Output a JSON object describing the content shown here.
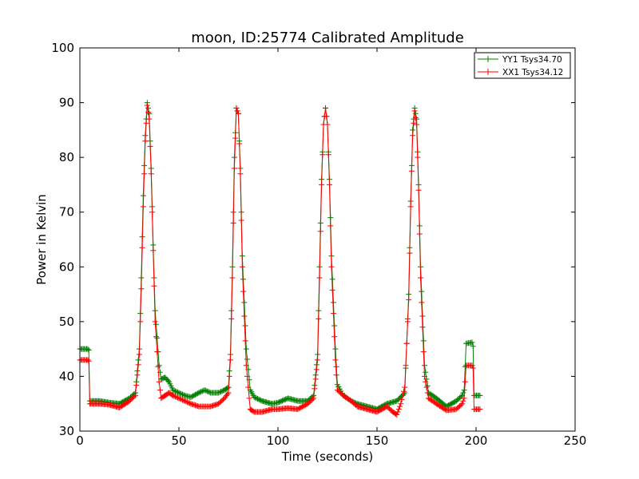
{
  "chart_data": {
    "type": "line",
    "title": "moon, ID:25774 Calibrated Amplitude",
    "xlabel": "Time (seconds)",
    "ylabel": "Power in Kelvin",
    "xlim": [
      0,
      250
    ],
    "ylim": [
      30,
      100
    ],
    "xticks": [
      0,
      50,
      100,
      150,
      200,
      250
    ],
    "yticks": [
      30,
      40,
      50,
      60,
      70,
      80,
      90,
      100
    ],
    "grid": false,
    "legend_position": "top-right",
    "marker": "plus",
    "series": [
      {
        "name": "YY1 Tsys34.70",
        "color": "#008000",
        "points": [
          [
            0,
            45
          ],
          [
            4,
            45
          ],
          [
            4.5,
            44.8
          ],
          [
            5,
            35.5
          ],
          [
            10,
            35.5
          ],
          [
            15,
            35.2
          ],
          [
            20,
            35
          ],
          [
            25,
            36
          ],
          [
            28,
            37
          ],
          [
            30,
            45
          ],
          [
            31,
            58
          ],
          [
            32,
            73
          ],
          [
            33,
            84
          ],
          [
            34,
            90
          ],
          [
            35,
            88
          ],
          [
            36,
            78
          ],
          [
            37,
            64
          ],
          [
            38,
            52
          ],
          [
            40,
            42
          ],
          [
            41,
            39.5
          ],
          [
            43,
            39.8
          ],
          [
            45,
            39
          ],
          [
            47,
            37.5
          ],
          [
            50,
            37
          ],
          [
            53,
            36.5
          ],
          [
            56,
            36.2
          ],
          [
            60,
            37
          ],
          [
            63,
            37.5
          ],
          [
            66,
            37
          ],
          [
            70,
            37
          ],
          [
            73,
            37.5
          ],
          [
            75,
            38
          ],
          [
            76,
            44
          ],
          [
            77,
            60
          ],
          [
            78,
            80
          ],
          [
            79,
            89
          ],
          [
            80,
            88
          ],
          [
            81,
            78
          ],
          [
            82,
            62
          ],
          [
            84,
            45
          ],
          [
            86,
            37.5
          ],
          [
            88,
            36.2
          ],
          [
            92,
            35.5
          ],
          [
            97,
            35
          ],
          [
            100,
            35.2
          ],
          [
            105,
            36
          ],
          [
            110,
            35.5
          ],
          [
            115,
            35.5
          ],
          [
            118,
            36.5
          ],
          [
            120,
            44
          ],
          [
            121,
            60
          ],
          [
            122,
            76
          ],
          [
            123,
            86
          ],
          [
            124,
            89
          ],
          [
            125,
            86
          ],
          [
            126,
            76
          ],
          [
            127,
            62
          ],
          [
            129,
            45
          ],
          [
            130,
            38.5
          ],
          [
            133,
            36.5
          ],
          [
            137,
            35.5
          ],
          [
            140,
            35
          ],
          [
            145,
            34.5
          ],
          [
            150,
            34
          ],
          [
            155,
            35
          ],
          [
            160,
            35.5
          ],
          [
            164,
            37
          ],
          [
            166,
            55
          ],
          [
            167,
            72
          ],
          [
            168,
            85
          ],
          [
            169,
            89
          ],
          [
            170,
            87
          ],
          [
            171,
            75
          ],
          [
            172,
            60
          ],
          [
            174,
            42
          ],
          [
            176,
            37
          ],
          [
            180,
            36
          ],
          [
            185,
            34.5
          ],
          [
            190,
            35.5
          ],
          [
            193,
            36.5
          ],
          [
            194,
            37.5
          ],
          [
            195,
            46
          ],
          [
            198,
            46.2
          ],
          [
            198.5,
            45.5
          ],
          [
            199,
            36.5
          ],
          [
            202,
            36.5
          ]
        ]
      },
      {
        "name": "XX1 Tsys34.12",
        "color": "#ff0000",
        "points": [
          [
            0,
            43
          ],
          [
            4,
            43
          ],
          [
            4.5,
            42.8
          ],
          [
            5,
            35
          ],
          [
            10,
            35
          ],
          [
            15,
            34.8
          ],
          [
            20,
            34.3
          ],
          [
            25,
            35.5
          ],
          [
            28,
            36.5
          ],
          [
            30,
            44
          ],
          [
            31,
            56
          ],
          [
            32,
            71
          ],
          [
            33,
            83
          ],
          [
            34,
            89.5
          ],
          [
            35,
            87
          ],
          [
            36,
            77
          ],
          [
            37,
            63
          ],
          [
            38,
            50
          ],
          [
            40,
            39
          ],
          [
            41,
            36
          ],
          [
            43,
            36.5
          ],
          [
            45,
            37
          ],
          [
            47,
            36.5
          ],
          [
            50,
            36
          ],
          [
            53,
            35.5
          ],
          [
            56,
            35
          ],
          [
            60,
            34.5
          ],
          [
            63,
            34.5
          ],
          [
            66,
            34.5
          ],
          [
            70,
            35
          ],
          [
            73,
            36
          ],
          [
            75,
            37
          ],
          [
            76,
            43
          ],
          [
            77,
            58
          ],
          [
            78,
            78
          ],
          [
            79,
            89
          ],
          [
            80,
            88
          ],
          [
            81,
            77
          ],
          [
            82,
            60
          ],
          [
            84,
            42
          ],
          [
            86,
            34
          ],
          [
            88,
            33.5
          ],
          [
            92,
            33.5
          ],
          [
            97,
            34
          ],
          [
            100,
            34
          ],
          [
            105,
            34.2
          ],
          [
            110,
            34
          ],
          [
            115,
            35
          ],
          [
            118,
            36
          ],
          [
            120,
            43
          ],
          [
            121,
            58
          ],
          [
            122,
            75
          ],
          [
            123,
            86
          ],
          [
            124,
            89
          ],
          [
            125,
            86
          ],
          [
            126,
            75
          ],
          [
            127,
            60
          ],
          [
            129,
            43
          ],
          [
            130,
            37.5
          ],
          [
            133,
            36.5
          ],
          [
            137,
            35.5
          ],
          [
            140,
            34.5
          ],
          [
            145,
            34
          ],
          [
            150,
            33.5
          ],
          [
            155,
            34.5
          ],
          [
            158,
            33.5
          ],
          [
            160,
            33
          ],
          [
            162,
            35
          ],
          [
            164,
            38
          ],
          [
            166,
            54
          ],
          [
            167,
            71
          ],
          [
            168,
            84
          ],
          [
            169,
            88.5
          ],
          [
            170,
            86
          ],
          [
            171,
            74
          ],
          [
            172,
            58
          ],
          [
            174,
            40
          ],
          [
            176,
            36
          ],
          [
            180,
            35
          ],
          [
            185,
            33.8
          ],
          [
            190,
            34
          ],
          [
            193,
            35
          ],
          [
            194,
            36
          ],
          [
            195,
            42
          ],
          [
            198,
            42
          ],
          [
            198.5,
            41.5
          ],
          [
            199,
            34
          ],
          [
            202,
            34
          ]
        ]
      }
    ]
  }
}
